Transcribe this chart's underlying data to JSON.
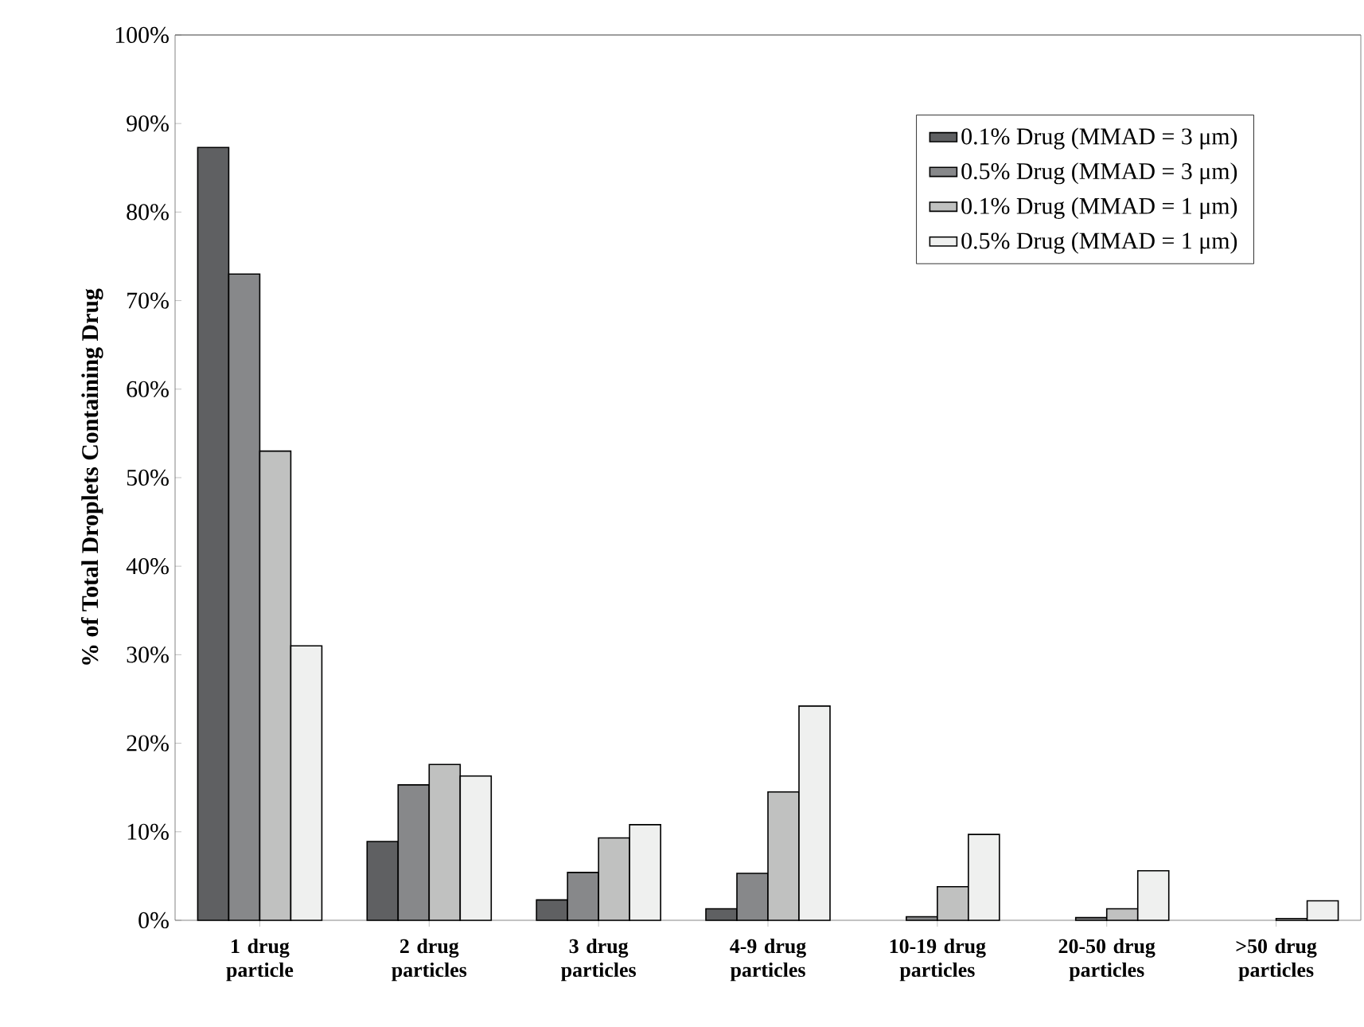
{
  "chart_data": {
    "type": "bar",
    "ylabel": "% of Total Droplets Containing Drug",
    "categories": [
      "1 drug particle",
      "2 drug particles",
      "3 drug particles",
      "4-9 drug particles",
      "10-19 drug particles",
      "20-50 drug particles",
      ">50 drug particles"
    ],
    "series": [
      {
        "name": "0.1% Drug (MMAD = 3 μm)",
        "color": "#5f6062",
        "values": [
          87.3,
          8.9,
          2.3,
          1.3,
          null,
          null,
          null
        ]
      },
      {
        "name": "0.5% Drug (MMAD = 3 μm)",
        "color": "#87888a",
        "values": [
          73,
          15.3,
          5.4,
          5.3,
          0.4,
          0.3,
          null
        ]
      },
      {
        "name": "0.1% Drug (MMAD = 1 μm)",
        "color": "#c0c1c0",
        "values": [
          53,
          17.6,
          9.3,
          14.5,
          3.8,
          1.3,
          0.2
        ]
      },
      {
        "name": "0.5% Drug (MMAD = 1 μm)",
        "color": "#eff0ef",
        "values": [
          31,
          16.3,
          10.8,
          24.2,
          9.7,
          5.6,
          2.2
        ]
      }
    ],
    "ylim": [
      0,
      100
    ],
    "yticks": [
      {
        "value": 0,
        "label": "0%"
      },
      {
        "value": 10,
        "label": "10%"
      },
      {
        "value": 20,
        "label": "20%"
      },
      {
        "value": 30,
        "label": "30%"
      },
      {
        "value": 40,
        "label": "40%"
      },
      {
        "value": 50,
        "label": "50%"
      },
      {
        "value": 60,
        "label": "60%"
      },
      {
        "value": 70,
        "label": "70%"
      },
      {
        "value": 80,
        "label": "80%"
      },
      {
        "value": 90,
        "label": "90%"
      },
      {
        "value": 100,
        "label": "100%"
      }
    ],
    "legend": "top right",
    "grid": false
  }
}
